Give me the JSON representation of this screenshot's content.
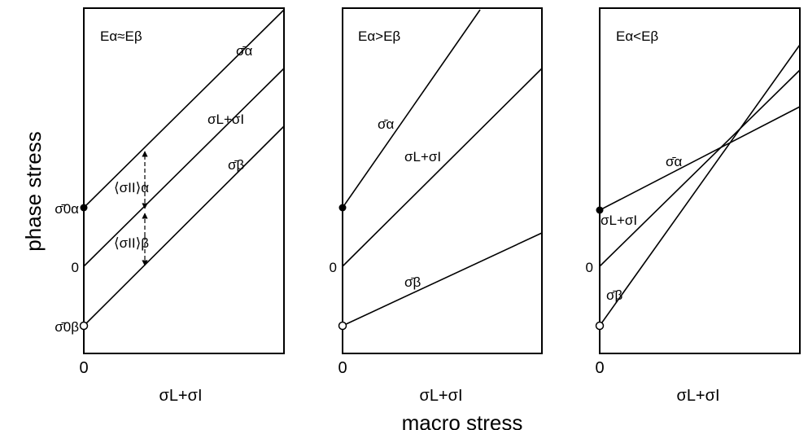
{
  "figure": {
    "y_axis_title": "phase stress",
    "x_axis_title": "macro stress"
  },
  "panels": [
    {
      "id": "equal",
      "condition": "Eα≈Eβ",
      "origin_label": "0",
      "x_axis_label": "σL+σI",
      "y_ticks": [
        "σ̄0α",
        "0",
        "σ̄0β"
      ],
      "lines": [
        {
          "name": "σ̄α",
          "intercept": "σ̄0α",
          "slope": "same"
        },
        {
          "name": "σL+σI",
          "intercept": "0",
          "slope": "same"
        },
        {
          "name": "σ̄β",
          "intercept": "σ̄0β",
          "slope": "same"
        }
      ],
      "brackets": [
        "⟨σII⟩α",
        "⟨σII⟩β"
      ]
    },
    {
      "id": "greater",
      "condition": "Eα>Eβ",
      "origin_label": "0",
      "x_axis_label": "σL+σI",
      "y_ticks": [
        "0"
      ],
      "lines": [
        {
          "name": "σ̄α",
          "slope": "steep"
        },
        {
          "name": "σL+σI",
          "slope": "medium"
        },
        {
          "name": "σ̄β",
          "slope": "shallow"
        }
      ]
    },
    {
      "id": "less",
      "condition": "Eα<Eβ",
      "origin_label": "0",
      "x_axis_label": "σL+σI",
      "y_ticks": [
        "0"
      ],
      "lines": [
        {
          "name": "σ̄α",
          "slope": "shallow"
        },
        {
          "name": "σL+σI",
          "slope": "medium"
        },
        {
          "name": "σ̄β",
          "slope": "steep"
        }
      ]
    }
  ]
}
